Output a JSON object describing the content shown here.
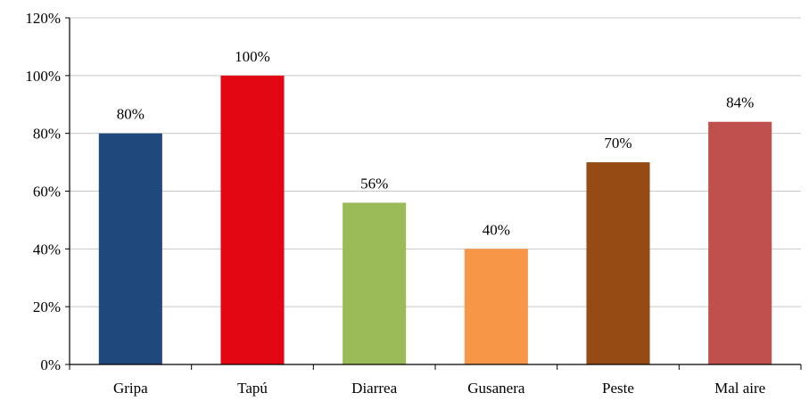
{
  "chart_data": {
    "type": "bar",
    "categories": [
      "Gripa",
      "Tapú",
      "Diarrea",
      "Gusanera",
      "Peste",
      "Mal aire"
    ],
    "values": [
      80,
      100,
      56,
      40,
      70,
      84
    ],
    "data_labels": [
      "80%",
      "100%",
      "56%",
      "40%",
      "70%",
      "84%"
    ],
    "colors": [
      "#1f497d",
      "#e30613",
      "#9bbb59",
      "#f79646",
      "#974b14",
      "#c0504d"
    ],
    "y_ticks": [
      0,
      20,
      40,
      60,
      80,
      100,
      120
    ],
    "y_tick_labels": [
      "0%",
      "20%",
      "40%",
      "60%",
      "80%",
      "100%",
      "120%"
    ],
    "ylim": [
      0,
      120
    ],
    "grid": true,
    "legend": "none",
    "title": "",
    "xlabel": "",
    "ylabel": ""
  }
}
